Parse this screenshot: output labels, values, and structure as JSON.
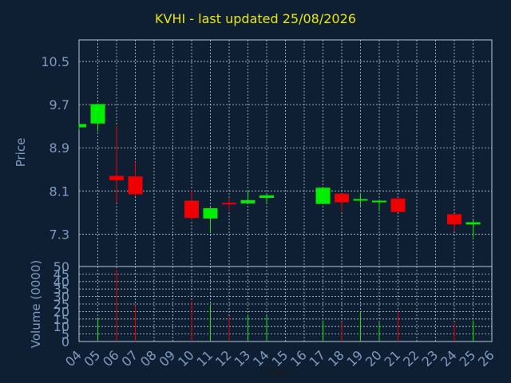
{
  "title": "KVHI - last updated 25/08/2026",
  "price_label": "Price",
  "volume_label": "Volume (0000)",
  "x_label": "Day",
  "colors": {
    "background": "#0f1f33",
    "plot_border": "#b8c8dc",
    "grid": "#b8c8dc",
    "axis_text": "#7f9bbf",
    "title": "#e8e800",
    "up": "#00ee00",
    "down": "#ee0000",
    "x_title": "#1a1a1a"
  },
  "chart_data": [
    {
      "type": "candlestick",
      "ylabel": "Price",
      "ylim": [
        6.7,
        10.9
      ],
      "yticks": [
        "10.5",
        "9.7",
        "8.9",
        "8.1",
        "7.3"
      ],
      "ytick_values": [
        10.5,
        9.7,
        8.9,
        8.1,
        7.3
      ],
      "x_categories": [
        "04",
        "05",
        "06",
        "07",
        "08",
        "09",
        "10",
        "11",
        "12",
        "13",
        "14",
        "15",
        "16",
        "17",
        "18",
        "19",
        "20",
        "21",
        "22",
        "23",
        "24",
        "25",
        "26"
      ],
      "candles": [
        {
          "day": "04",
          "open": 9.28,
          "high": 9.34,
          "low": 9.23,
          "close": 9.34
        },
        {
          "day": "05",
          "open": 9.35,
          "high": 9.72,
          "low": 9.2,
          "close": 9.71
        },
        {
          "day": "06",
          "open": 8.38,
          "high": 9.3,
          "low": 7.88,
          "close": 8.3
        },
        {
          "day": "07",
          "open": 8.37,
          "high": 8.64,
          "low": 8.0,
          "close": 8.04
        },
        {
          "day": "10",
          "open": 7.92,
          "high": 8.12,
          "low": 7.56,
          "close": 7.6
        },
        {
          "day": "11",
          "open": 7.59,
          "high": 7.79,
          "low": 7.33,
          "close": 7.78
        },
        {
          "day": "12",
          "open": 7.88,
          "high": 7.98,
          "low": 7.72,
          "close": 7.86
        },
        {
          "day": "13",
          "open": 7.87,
          "high": 8.12,
          "low": 7.87,
          "close": 7.93
        },
        {
          "day": "14",
          "open": 7.97,
          "high": 8.03,
          "low": 7.86,
          "close": 8.02
        },
        {
          "day": "17",
          "open": 7.86,
          "high": 8.17,
          "low": 7.86,
          "close": 8.16
        },
        {
          "day": "18",
          "open": 8.05,
          "high": 8.05,
          "low": 7.72,
          "close": 7.89
        },
        {
          "day": "19",
          "open": 7.93,
          "high": 8.06,
          "low": 7.82,
          "close": 7.95
        },
        {
          "day": "20",
          "open": 7.91,
          "high": 7.94,
          "low": 7.72,
          "close": 7.92
        },
        {
          "day": "21",
          "open": 7.96,
          "high": 7.96,
          "low": 7.72,
          "close": 7.71
        },
        {
          "day": "24",
          "open": 7.67,
          "high": 7.67,
          "low": 7.36,
          "close": 7.48
        },
        {
          "day": "25",
          "open": 7.48,
          "high": 7.56,
          "low": 7.24,
          "close": 7.52
        }
      ]
    },
    {
      "type": "bar",
      "ylabel": "Volume (0000)",
      "ylim": [
        0,
        50
      ],
      "yticks": [
        "50",
        "45",
        "40",
        "35",
        "30",
        "25",
        "20",
        "15",
        "10",
        "5",
        "0"
      ],
      "ytick_values": [
        50,
        45,
        40,
        35,
        30,
        25,
        20,
        15,
        10,
        5,
        0
      ],
      "xlabel": "Day",
      "x_categories": [
        "04",
        "05",
        "06",
        "07",
        "08",
        "09",
        "10",
        "11",
        "12",
        "13",
        "14",
        "15",
        "16",
        "17",
        "18",
        "19",
        "20",
        "21",
        "22",
        "23",
        "24",
        "25",
        "26"
      ],
      "bars": [
        {
          "day": "05",
          "value": 15,
          "direction": "up"
        },
        {
          "day": "06",
          "value": 48,
          "direction": "down"
        },
        {
          "day": "07",
          "value": 24,
          "direction": "down"
        },
        {
          "day": "10",
          "value": 27,
          "direction": "down"
        },
        {
          "day": "11",
          "value": 24,
          "direction": "up"
        },
        {
          "day": "12",
          "value": 17,
          "direction": "down"
        },
        {
          "day": "13",
          "value": 18,
          "direction": "up"
        },
        {
          "day": "14",
          "value": 17,
          "direction": "up"
        },
        {
          "day": "17",
          "value": 14,
          "direction": "up"
        },
        {
          "day": "18",
          "value": 13,
          "direction": "down"
        },
        {
          "day": "19",
          "value": 20,
          "direction": "up"
        },
        {
          "day": "20",
          "value": 13,
          "direction": "up"
        },
        {
          "day": "21",
          "value": 20,
          "direction": "down"
        },
        {
          "day": "24",
          "value": 12,
          "direction": "down"
        },
        {
          "day": "25",
          "value": 14,
          "direction": "up"
        }
      ]
    }
  ]
}
